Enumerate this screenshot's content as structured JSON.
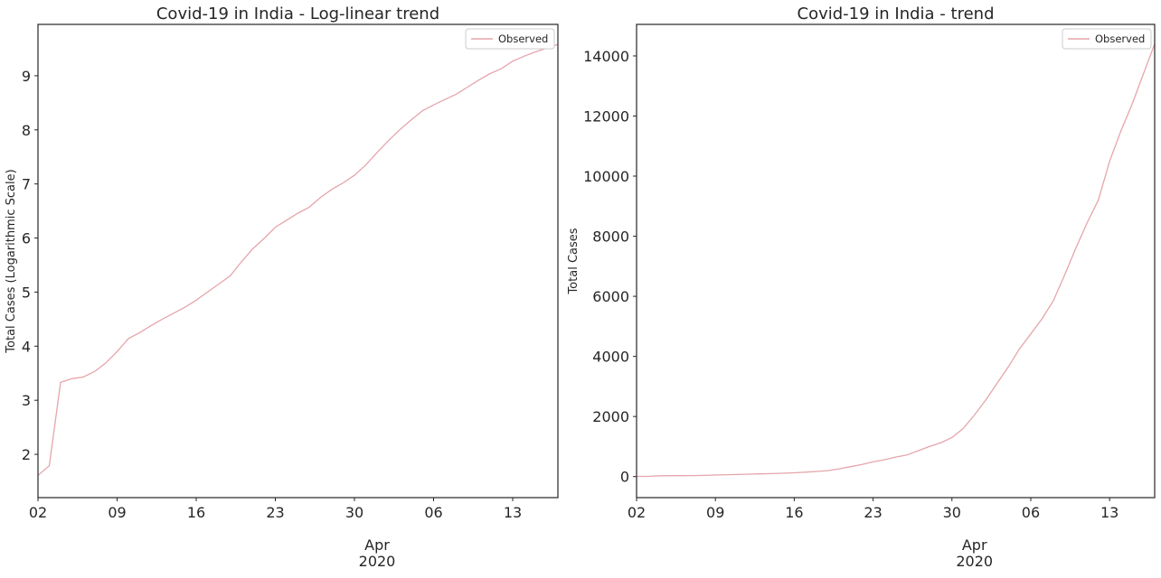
{
  "chart_data": [
    {
      "type": "line",
      "title": "Covid-19 in India - Log-linear trend",
      "xlabel": "",
      "ylabel": "Total Cases (Logarithmic Scale)",
      "x_tick_labels": [
        "02",
        "09",
        "16",
        "23",
        "30",
        "06",
        "13"
      ],
      "x_month_label": "Apr",
      "x_year_label": "2020",
      "y_ticks": [
        2,
        3,
        4,
        5,
        6,
        7,
        8,
        9
      ],
      "xlim": [
        "2020-03-02",
        "2020-04-17"
      ],
      "ylim": [
        1.2,
        9.95
      ],
      "grid": false,
      "legend_position": "top-right",
      "series": [
        {
          "name": "Observed",
          "color": "#e5a5ac",
          "x": [
            "2020-03-02",
            "2020-03-03",
            "2020-03-04",
            "2020-03-05",
            "2020-03-06",
            "2020-03-07",
            "2020-03-08",
            "2020-03-09",
            "2020-03-10",
            "2020-03-11",
            "2020-03-12",
            "2020-03-13",
            "2020-03-14",
            "2020-03-15",
            "2020-03-16",
            "2020-03-17",
            "2020-03-18",
            "2020-03-19",
            "2020-03-20",
            "2020-03-21",
            "2020-03-22",
            "2020-03-23",
            "2020-03-24",
            "2020-03-25",
            "2020-03-26",
            "2020-03-27",
            "2020-03-28",
            "2020-03-29",
            "2020-03-30",
            "2020-03-31",
            "2020-04-01",
            "2020-04-02",
            "2020-04-03",
            "2020-04-04",
            "2020-04-05",
            "2020-04-06",
            "2020-04-07",
            "2020-04-08",
            "2020-04-09",
            "2020-04-10",
            "2020-04-11",
            "2020-04-12",
            "2020-04-13",
            "2020-04-14",
            "2020-04-15",
            "2020-04-16",
            "2020-04-17"
          ],
          "y": [
            1.61,
            1.79,
            3.33,
            3.4,
            3.43,
            3.53,
            3.69,
            3.9,
            4.14,
            4.25,
            4.38,
            4.5,
            4.61,
            4.72,
            4.85,
            5.0,
            5.15,
            5.3,
            5.56,
            5.8,
            5.99,
            6.2,
            6.33,
            6.46,
            6.57,
            6.75,
            6.9,
            7.02,
            7.16,
            7.35,
            7.58,
            7.8,
            8.0,
            8.18,
            8.35,
            8.46,
            8.56,
            8.66,
            8.79,
            8.92,
            9.04,
            9.13,
            9.27,
            9.36,
            9.44,
            9.51,
            9.58
          ]
        }
      ]
    },
    {
      "type": "line",
      "title": "Covid-19 in India - trend",
      "xlabel": "",
      "ylabel": "Total Cases",
      "x_tick_labels": [
        "02",
        "09",
        "16",
        "23",
        "30",
        "06",
        "13"
      ],
      "x_month_label": "Apr",
      "x_year_label": "2020",
      "y_ticks": [
        0,
        2000,
        4000,
        6000,
        8000,
        10000,
        12000,
        14000
      ],
      "xlim": [
        "2020-03-02",
        "2020-04-17"
      ],
      "ylim": [
        -700,
        15050
      ],
      "grid": false,
      "legend_position": "top-right",
      "series": [
        {
          "name": "Observed",
          "color": "#e5a5ac",
          "x": [
            "2020-03-02",
            "2020-03-03",
            "2020-03-04",
            "2020-03-05",
            "2020-03-06",
            "2020-03-07",
            "2020-03-08",
            "2020-03-09",
            "2020-03-10",
            "2020-03-11",
            "2020-03-12",
            "2020-03-13",
            "2020-03-14",
            "2020-03-15",
            "2020-03-16",
            "2020-03-17",
            "2020-03-18",
            "2020-03-19",
            "2020-03-20",
            "2020-03-21",
            "2020-03-22",
            "2020-03-23",
            "2020-03-24",
            "2020-03-25",
            "2020-03-26",
            "2020-03-27",
            "2020-03-28",
            "2020-03-29",
            "2020-03-30",
            "2020-03-31",
            "2020-04-01",
            "2020-04-02",
            "2020-04-03",
            "2020-04-04",
            "2020-04-05",
            "2020-04-06",
            "2020-04-07",
            "2020-04-08",
            "2020-04-09",
            "2020-04-10",
            "2020-04-11",
            "2020-04-12",
            "2020-04-13",
            "2020-04-14",
            "2020-04-15",
            "2020-04-16",
            "2020-04-17"
          ],
          "y": [
            5,
            6,
            28,
            30,
            31,
            34,
            40,
            50,
            62,
            70,
            80,
            90,
            100,
            112,
            128,
            148,
            173,
            200,
            260,
            330,
            400,
            490,
            560,
            650,
            720,
            860,
            1000,
            1120,
            1300,
            1600,
            2050,
            2550,
            3100,
            3650,
            4250,
            4750,
            5250,
            5850,
            6700,
            7600,
            8450,
            9200,
            10500,
            11500,
            12400,
            13400,
            14400
          ]
        }
      ]
    }
  ]
}
